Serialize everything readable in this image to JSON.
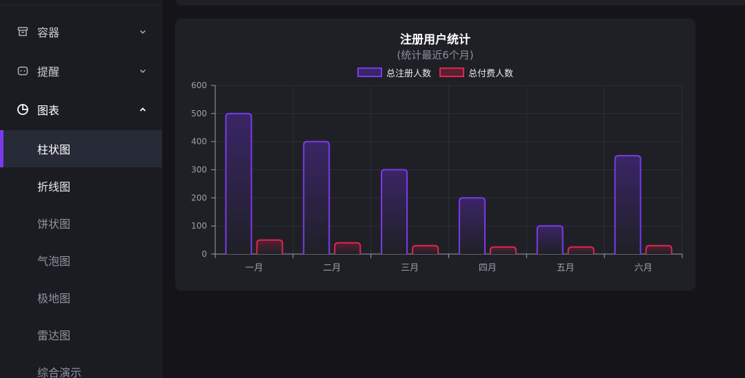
{
  "sidebar": {
    "groups": [
      {
        "label": "容器",
        "icon": "archive-icon",
        "expanded": false
      },
      {
        "label": "提醒",
        "icon": "message-icon",
        "expanded": false
      },
      {
        "label": "图表",
        "icon": "pie-chart-icon",
        "expanded": true
      }
    ],
    "sub_items": [
      {
        "label": "柱状图",
        "active": true
      },
      {
        "label": "折线图",
        "active": false
      },
      {
        "label": "饼状图",
        "active": false
      },
      {
        "label": "气泡图",
        "active": false
      },
      {
        "label": "极地图",
        "active": false
      },
      {
        "label": "雷达图",
        "active": false
      },
      {
        "label": "综合演示",
        "active": false
      }
    ],
    "accent_color": "#7c3aed"
  },
  "chart_data": {
    "type": "bar",
    "title": "注册用户统计",
    "subtitle": "(统计最近6个月)",
    "categories": [
      "一月",
      "二月",
      "三月",
      "四月",
      "五月",
      "六月"
    ],
    "series": [
      {
        "name": "总注册人数",
        "values": [
          500,
          400,
          300,
          200,
          100,
          350
        ],
        "color": "#7c3aed",
        "fill": "#3a2566"
      },
      {
        "name": "总付费人数",
        "values": [
          50,
          40,
          30,
          25,
          25,
          30
        ],
        "color": "#e0264e",
        "fill": "#5a1f33"
      }
    ],
    "ylim": [
      0,
      600
    ],
    "yticks": [
      0,
      100,
      200,
      300,
      400,
      500,
      600
    ],
    "grid": true,
    "legend_position": "top"
  }
}
